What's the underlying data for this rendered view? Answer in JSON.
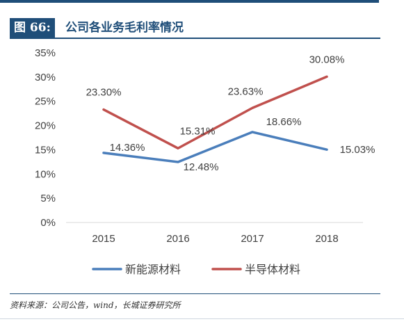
{
  "figure": {
    "label": "图 66:",
    "title": "公司各业务毛利率情况"
  },
  "source": "资料来源：公司公告，wind，长城证券研究所",
  "colors": {
    "navy": "#1f4e79",
    "series1": "#4a7ebb",
    "series2": "#c0504d"
  },
  "chart_data": {
    "type": "line",
    "title": "公司各业务毛利率情况",
    "xlabel": "",
    "ylabel": "",
    "categories": [
      "2015",
      "2016",
      "2017",
      "2018"
    ],
    "ylim": [
      0,
      35
    ],
    "yticks": [
      0,
      5,
      10,
      15,
      20,
      25,
      30,
      35
    ],
    "ytick_labels": [
      "0%",
      "5%",
      "10%",
      "15%",
      "20%",
      "25%",
      "30%",
      "35%"
    ],
    "series": [
      {
        "name": "新能源材料",
        "color": "#4a7ebb",
        "values": [
          14.36,
          12.48,
          18.66,
          15.03
        ],
        "labels": [
          "14.36%",
          "12.48%",
          "18.66%",
          "15.03%"
        ]
      },
      {
        "name": "半导体材料",
        "color": "#c0504d",
        "values": [
          23.3,
          15.31,
          23.63,
          30.08
        ],
        "labels": [
          "23.30%",
          "15.31%",
          "23.63%",
          "30.08%"
        ]
      }
    ],
    "legend": "bottom",
    "grid": false
  }
}
